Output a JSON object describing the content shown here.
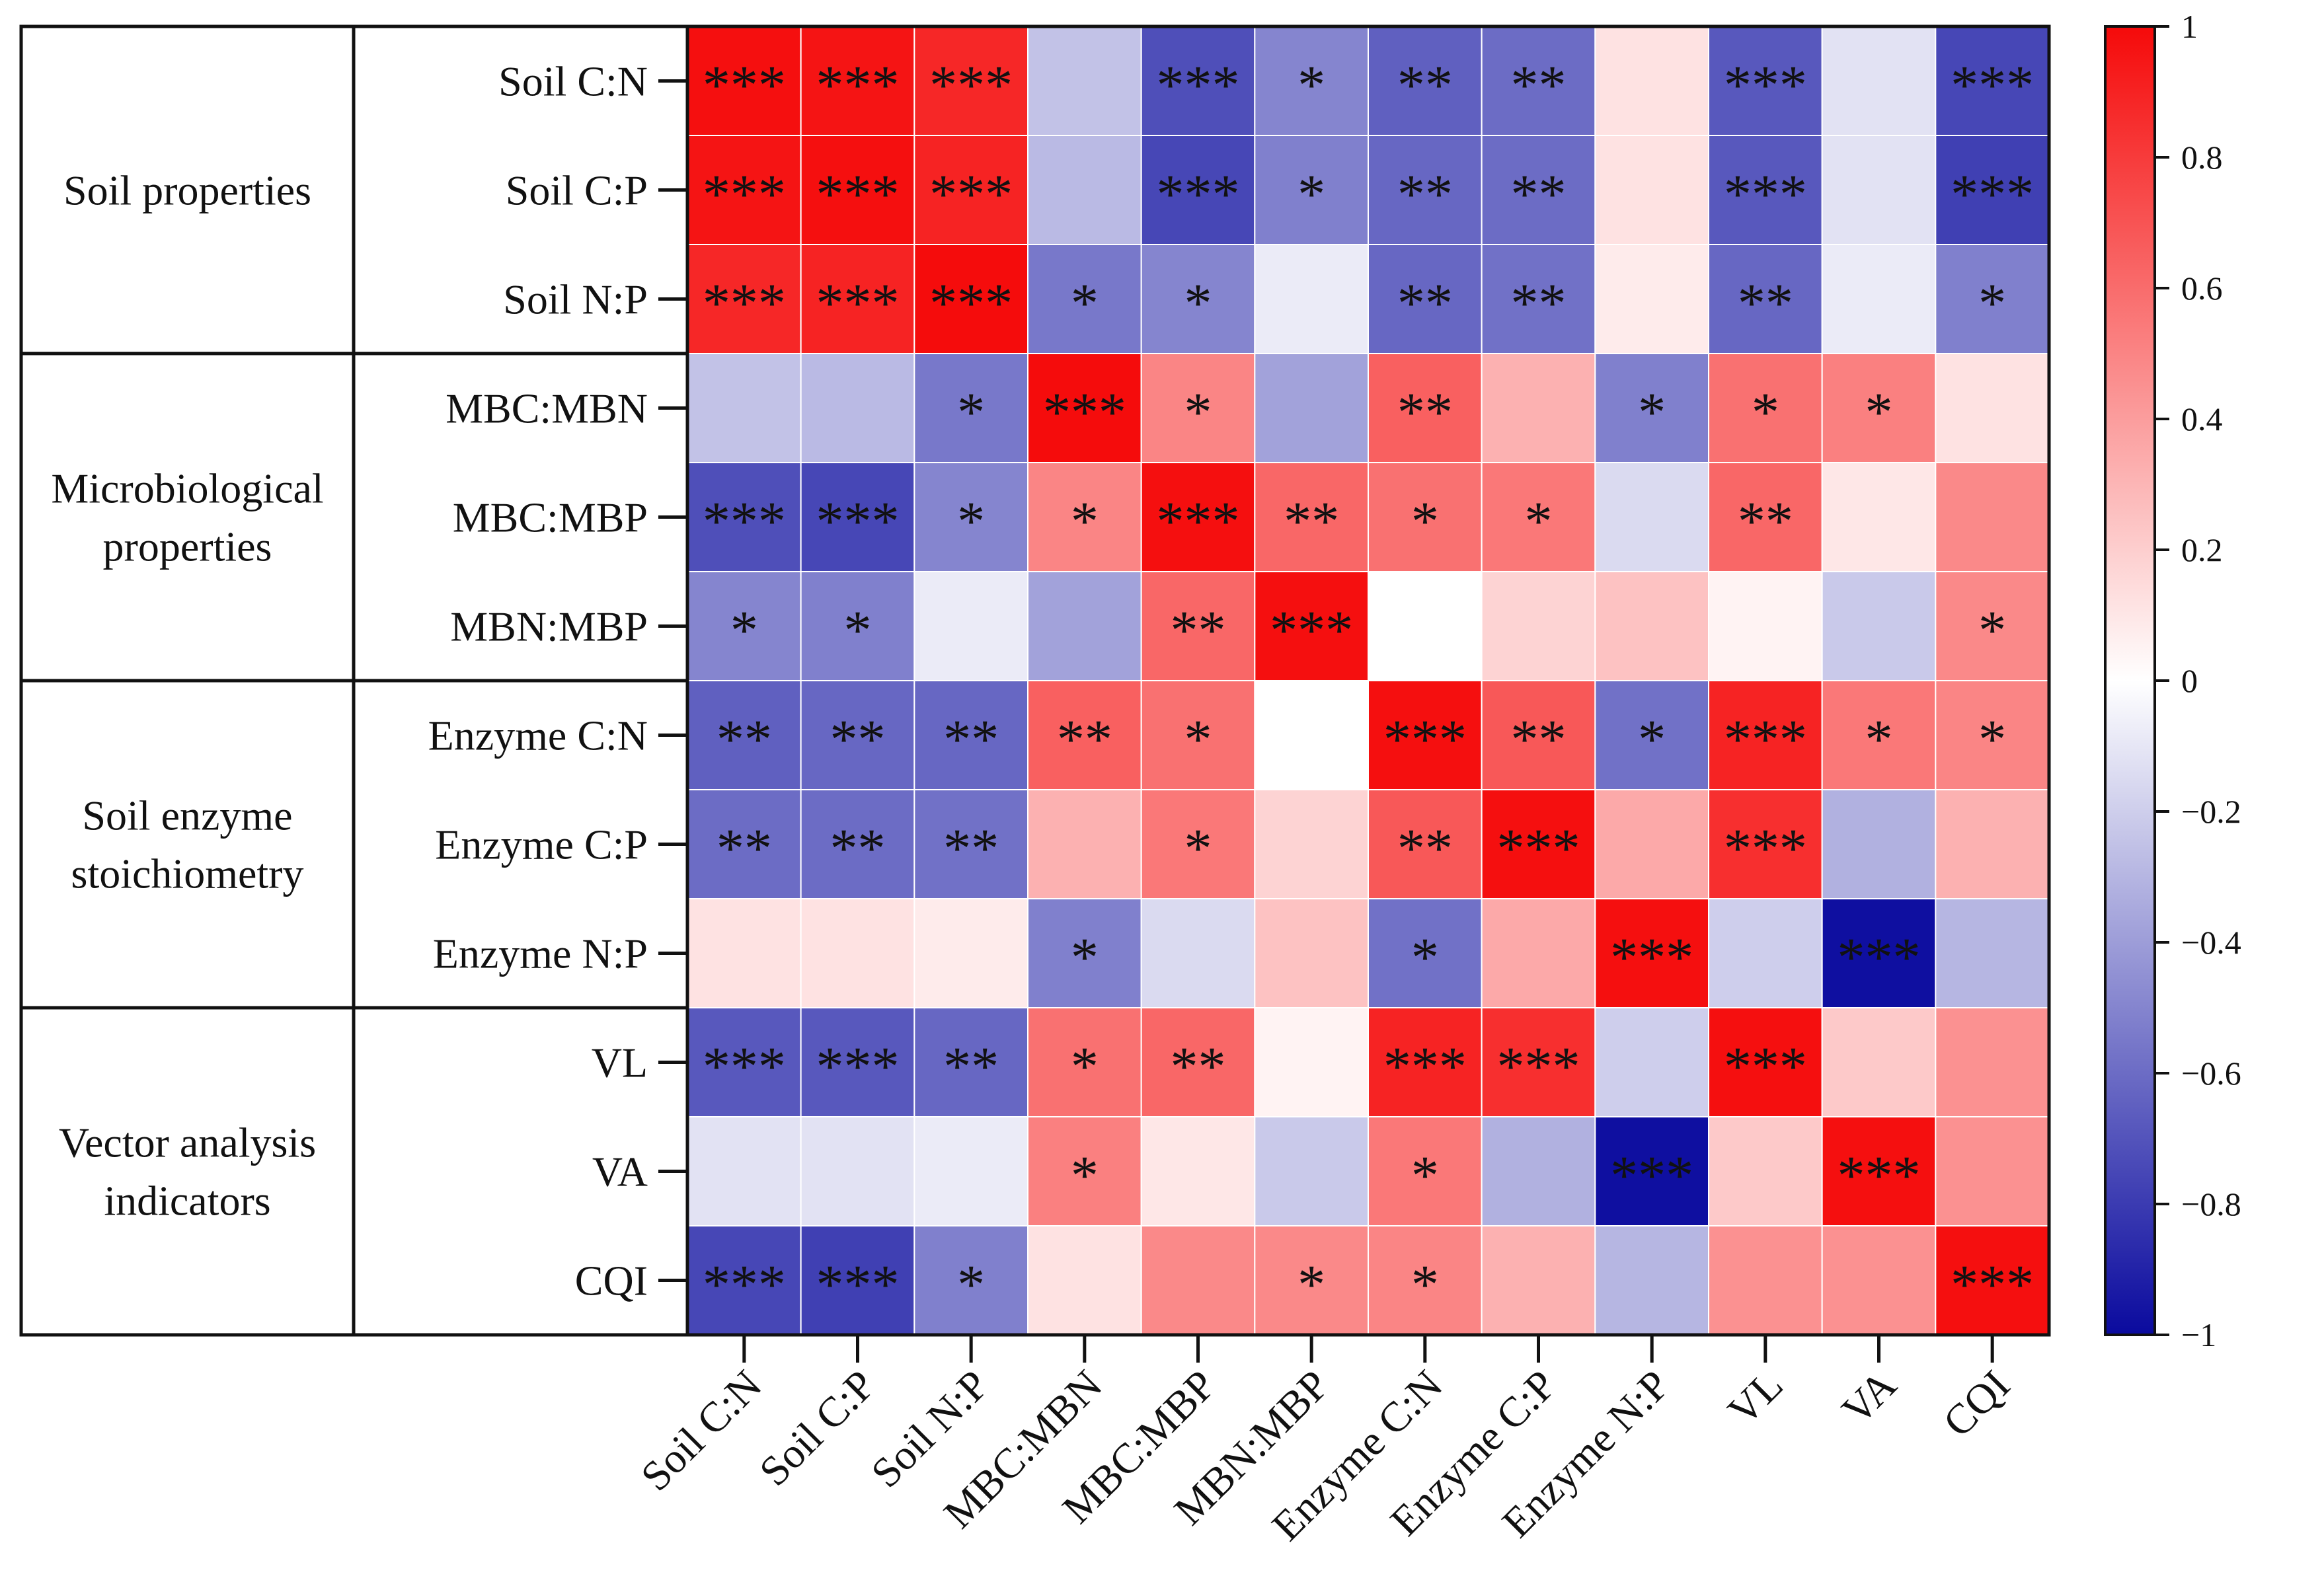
{
  "chart_data": {
    "type": "heatmap",
    "title": "",
    "variables": [
      "Soil C:N",
      "Soil C:P",
      "Soil N:P",
      "MBC:MBN",
      "MBC:MBP",
      "MBN:MBP",
      "Enzyme C:N",
      "Enzyme C:P",
      "Enzyme N:P",
      "VL",
      "VA",
      "CQI"
    ],
    "groups": [
      {
        "label_lines": [
          "Soil properties"
        ],
        "rows": [
          0,
          1,
          2
        ]
      },
      {
        "label_lines": [
          "Microbiological",
          "properties"
        ],
        "rows": [
          3,
          4,
          5
        ]
      },
      {
        "label_lines": [
          "Soil enzyme",
          "stoichiometry"
        ],
        "rows": [
          6,
          7,
          8
        ]
      },
      {
        "label_lines": [
          "Vector analysis",
          "indicators"
        ],
        "rows": [
          9,
          10,
          11
        ]
      }
    ],
    "values": [
      [
        0.98,
        0.96,
        0.88,
        -0.25,
        -0.72,
        -0.5,
        -0.65,
        -0.6,
        0.12,
        -0.68,
        -0.12,
        -0.75
      ],
      [
        0.96,
        0.98,
        0.9,
        -0.28,
        -0.75,
        -0.52,
        -0.62,
        -0.6,
        0.12,
        -0.68,
        -0.12,
        -0.78
      ],
      [
        0.88,
        0.9,
        0.99,
        -0.55,
        -0.5,
        -0.08,
        -0.62,
        -0.58,
        0.08,
        -0.62,
        -0.08,
        -0.52
      ],
      [
        -0.25,
        -0.28,
        -0.55,
        0.99,
        0.5,
        -0.38,
        0.65,
        0.32,
        -0.52,
        0.58,
        0.52,
        0.12
      ],
      [
        -0.72,
        -0.75,
        -0.5,
        0.5,
        0.98,
        0.62,
        0.58,
        0.55,
        -0.15,
        0.62,
        0.1,
        0.48
      ],
      [
        -0.5,
        -0.52,
        -0.08,
        -0.38,
        0.62,
        0.98,
        0.0,
        0.18,
        0.25,
        0.05,
        -0.22,
        0.48
      ],
      [
        -0.65,
        -0.62,
        -0.62,
        0.65,
        0.58,
        0.0,
        0.98,
        0.68,
        -0.58,
        0.9,
        0.55,
        0.5
      ],
      [
        -0.6,
        -0.6,
        -0.58,
        0.32,
        0.55,
        0.18,
        0.68,
        0.98,
        0.35,
        0.85,
        -0.32,
        0.32
      ],
      [
        0.12,
        0.12,
        0.08,
        -0.52,
        -0.15,
        0.25,
        -0.58,
        0.35,
        0.98,
        -0.2,
        -0.98,
        -0.3
      ],
      [
        -0.68,
        -0.68,
        -0.62,
        0.58,
        0.62,
        0.05,
        0.9,
        0.85,
        -0.2,
        0.98,
        0.22,
        0.45
      ],
      [
        -0.12,
        -0.12,
        -0.08,
        0.52,
        0.1,
        -0.22,
        0.55,
        -0.32,
        -0.98,
        0.22,
        0.98,
        0.45
      ],
      [
        -0.75,
        -0.78,
        -0.52,
        0.12,
        0.48,
        0.48,
        0.5,
        0.32,
        -0.3,
        0.45,
        0.45,
        0.98
      ]
    ],
    "significance": [
      [
        "***",
        "***",
        "***",
        "",
        "***",
        "*",
        "**",
        "**",
        "",
        "***",
        "",
        "***"
      ],
      [
        "***",
        "***",
        "***",
        "",
        "***",
        "*",
        "**",
        "**",
        "",
        "***",
        "",
        "***"
      ],
      [
        "***",
        "***",
        "***",
        "*",
        "*",
        "",
        "**",
        "**",
        "",
        "**",
        "",
        "*"
      ],
      [
        "",
        "",
        "*",
        "***",
        "*",
        "",
        "**",
        "",
        "*",
        "*",
        "*",
        ""
      ],
      [
        "***",
        "***",
        "*",
        "*",
        "***",
        "**",
        "*",
        "*",
        "",
        "**",
        "",
        ""
      ],
      [
        "*",
        "*",
        "",
        "",
        "**",
        "***",
        "",
        "",
        "",
        "",
        "",
        "*"
      ],
      [
        "**",
        "**",
        "**",
        "**",
        "*",
        "",
        "***",
        "**",
        "*",
        "***",
        "*",
        "*"
      ],
      [
        "**",
        "**",
        "**",
        "",
        "*",
        "",
        "**",
        "***",
        "",
        "***",
        "",
        ""
      ],
      [
        "",
        "",
        "",
        "*",
        "",
        "",
        "*",
        "",
        "***",
        "",
        "***",
        ""
      ],
      [
        "***",
        "***",
        "**",
        "*",
        "**",
        "",
        "***",
        "***",
        "",
        "***",
        "",
        ""
      ],
      [
        "",
        "",
        "",
        "*",
        "",
        "",
        "*",
        "",
        "***",
        "",
        "***",
        ""
      ],
      [
        "***",
        "***",
        "*",
        "",
        "",
        "*",
        "*",
        "",
        "",
        "",
        "",
        "***"
      ]
    ],
    "colorbar": {
      "range": [
        -1,
        1
      ],
      "ticks": [
        1,
        0.8,
        0.6,
        0.4,
        0.2,
        0,
        -0.2,
        -0.4,
        -0.6,
        -0.8,
        -1
      ],
      "tick_labels": [
        "1",
        "0.8",
        "0.6",
        "0.4",
        "0.2",
        "0",
        "−0.2",
        "−0.4",
        "−0.6",
        "−0.8",
        "−1"
      ],
      "colors": {
        "negative": "#0a0a9e",
        "zero": "#ffffff",
        "positive": "#f50a0a"
      }
    }
  }
}
